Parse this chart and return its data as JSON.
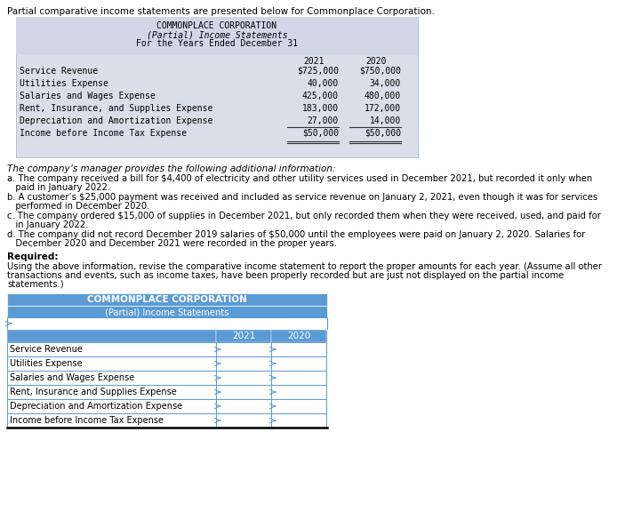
{
  "title_line1": "Partial comparative income statements are presented below for Commonplace Corporation.",
  "table1_header1": "COMMONPLACE CORPORATION",
  "table1_header2": "(Partial) Income Statements",
  "table1_header3": "For the Years Ended December 31",
  "table1_col_headers": [
    "2021",
    "2020"
  ],
  "table1_rows": [
    [
      "Service Revenue",
      "$725,000",
      "$750,000"
    ],
    [
      "Utilities Expense",
      "40,000",
      "34,000"
    ],
    [
      "Salaries and Wages Expense",
      "425,000",
      "480,000"
    ],
    [
      "Rent, Insurance, and Supplies Expense",
      "183,000",
      "172,000"
    ],
    [
      "Depreciation and Amortization Expense",
      "27,000",
      "14,000"
    ],
    [
      "Income before Income Tax Expense",
      "$50,000",
      "$50,000"
    ]
  ],
  "info_header": "The company’s manager provides the following additional information:",
  "info_items": [
    [
      "a. The company received a bill for $4,400 of electricity and other utility services used in December 2021, but recorded it only when",
      "   paid in January 2022."
    ],
    [
      "b. A customer’s $25,000 payment was received and included as service revenue on January 2, 2021, even though it was for services",
      "   performed in December 2020."
    ],
    [
      "c. The company ordered $15,000 of supplies in December 2021, but only recorded them when they were received, used, and paid for",
      "   in January 2022."
    ],
    [
      "d. The company did not record December 2019 salaries of $50,000 until the employees were paid on January 2, 2020. Salaries for",
      "   December 2020 and December 2021 were recorded in the proper years."
    ]
  ],
  "required_header": "Required:",
  "required_lines": [
    "Using the above information, revise the comparative income statement to report the proper amounts for each year. (Assume all other",
    "transactions and events, such as income taxes, have been properly recorded but are just not displayed on the partial income",
    "statements.)"
  ],
  "table2_header1": "COMMONPLACE CORPORATION",
  "table2_header2": "(Partial) Income Statements",
  "table2_col_headers": [
    "2021",
    "2020"
  ],
  "table2_rows": [
    "Service Revenue",
    "Utilities Expense",
    "Salaries and Wages Expense",
    "Rent, Insurance and Supplies Expense",
    "Depreciation and Amortization Expense",
    "Income before Income Tax Expense"
  ],
  "table1_bg": "#d9dfe8",
  "table2_hdr_bg": "#5b9bd5",
  "table2_hdr_text": "#ffffff",
  "table2_row_border": "#5b9bd5",
  "col_hdr_bg": "#d9dfe8"
}
